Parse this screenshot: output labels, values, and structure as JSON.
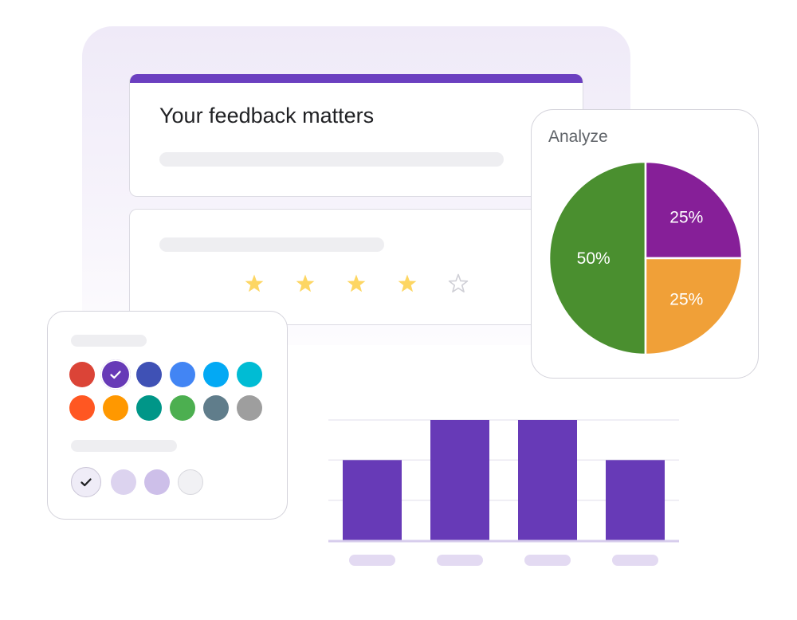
{
  "form": {
    "title": "Your feedback matters",
    "rating": {
      "value": 4,
      "max": 5
    }
  },
  "analyze": {
    "title": "Analyze",
    "chart_data": {
      "type": "pie",
      "title": "",
      "slices": [
        {
          "label": "50%",
          "value": 50,
          "color": "#4a8f2f"
        },
        {
          "label": "25%",
          "value": 25,
          "color": "#861f98"
        },
        {
          "label": "25%",
          "value": 25,
          "color": "#f0a038"
        }
      ]
    }
  },
  "palette": {
    "theme_colors": [
      [
        "#db4437",
        "#673ab7",
        "#3f51b5",
        "#4285f4",
        "#03a9f4",
        "#00bcd4"
      ],
      [
        "#ff5722",
        "#ff9800",
        "#009688",
        "#4caf50",
        "#607d8b",
        "#9e9e9e"
      ]
    ],
    "selected_color": "#673ab7",
    "shades": [
      "#efecf7",
      "#dcd3ef",
      "#cdbfe9",
      "#f1f1f4"
    ],
    "selected_shade": "#efecf7"
  },
  "bar_chart": {
    "chart_data": {
      "type": "bar",
      "categories": [
        "",
        "",
        "",
        ""
      ],
      "values": [
        2,
        3,
        3,
        2
      ],
      "ylim": [
        0,
        3
      ],
      "grid": true,
      "color": "#673ab7",
      "title": "",
      "xlabel": "",
      "ylabel": ""
    }
  }
}
